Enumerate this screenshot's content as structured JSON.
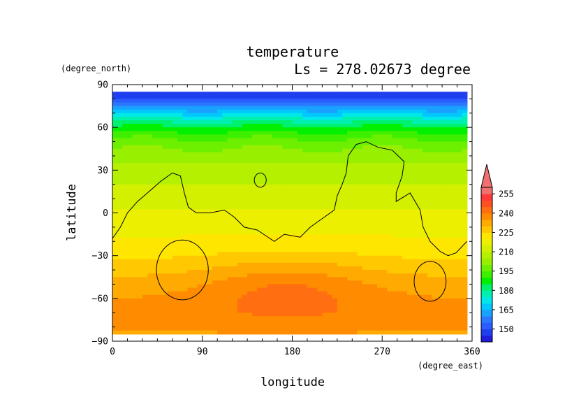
{
  "chart_data": {
    "type": "heatmap",
    "title": "temperature",
    "subtitle": "Ls = 278.02673 degree",
    "xlabel": "longitude",
    "ylabel": "latitude",
    "xunit": "(degree_east)",
    "yunit": "(degree_north)",
    "xlim": [
      0,
      360
    ],
    "ylim": [
      -90,
      90
    ],
    "xticks": [
      "0",
      "90",
      "180",
      "270",
      "360"
    ],
    "yticks": [
      "90",
      "60",
      "30",
      "0",
      "−30",
      "−60",
      "−90"
    ],
    "colorbar": {
      "levels": [
        140,
        145,
        150,
        155,
        160,
        165,
        170,
        175,
        180,
        185,
        190,
        195,
        200,
        205,
        210,
        215,
        220,
        225,
        230,
        235,
        240,
        245,
        250,
        255,
        260
      ],
      "labels": [
        "150",
        "165",
        "180",
        "195",
        "210",
        "225",
        "240",
        "255"
      ],
      "colors": [
        "#1e1edc",
        "#2040f0",
        "#2a5cff",
        "#2b78ff",
        "#1aa0ff",
        "#00c8ff",
        "#00e8e8",
        "#00f0b0",
        "#00f070",
        "#00f000",
        "#3ef000",
        "#6cf000",
        "#98f000",
        "#b4f000",
        "#d2f000",
        "#ecf000",
        "#ffe600",
        "#ffc800",
        "#ffaa00",
        "#ff8c00",
        "#ff6e10",
        "#ff5020",
        "#ff3a3a",
        "#f07070"
      ]
    },
    "lat_profile": [
      [
        85,
        145
      ],
      [
        80,
        150
      ],
      [
        75,
        158
      ],
      [
        70,
        168
      ],
      [
        65,
        178
      ],
      [
        60,
        186
      ],
      [
        55,
        192
      ],
      [
        50,
        197
      ],
      [
        45,
        200
      ],
      [
        40,
        203
      ],
      [
        35,
        205
      ],
      [
        30,
        207
      ],
      [
        20,
        210
      ],
      [
        10,
        213
      ],
      [
        0,
        216
      ],
      [
        -10,
        218
      ],
      [
        -20,
        221
      ],
      [
        -30,
        224
      ],
      [
        -40,
        228
      ],
      [
        -50,
        232
      ],
      [
        -60,
        235
      ],
      [
        -70,
        237
      ],
      [
        -80,
        236
      ],
      [
        -85,
        234
      ]
    ],
    "warm_regions": [
      {
        "name": "orange-core",
        "value": 232
      }
    ]
  }
}
